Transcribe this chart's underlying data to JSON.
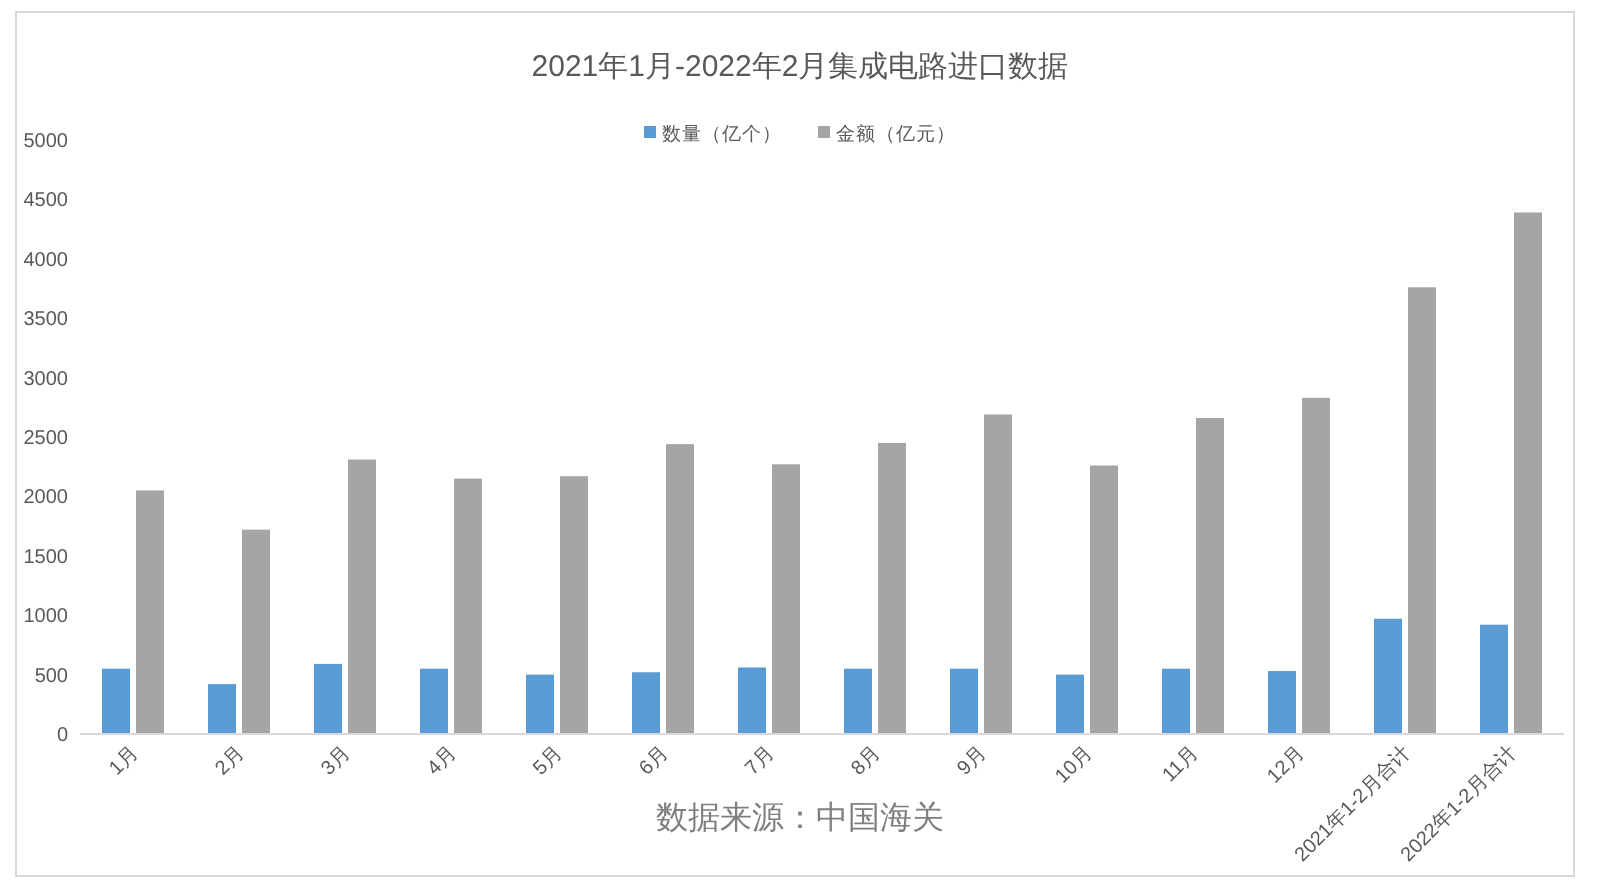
{
  "chart_data": {
    "type": "bar",
    "title": "2021年1月-2022年2月集成电路进口数据",
    "categories": [
      "1月",
      "2月",
      "3月",
      "4月",
      "5月",
      "6月",
      "7月",
      "8月",
      "9月",
      "10月",
      "11月",
      "12月",
      "2021年1-2月合计",
      "2022年1-2月合计"
    ],
    "series": [
      {
        "name": "数量（亿个）",
        "color": "#5b9bd5",
        "values": [
          550,
          420,
          590,
          550,
          500,
          520,
          560,
          550,
          550,
          500,
          550,
          530,
          970,
          920
        ]
      },
      {
        "name": "金额（亿元）",
        "color": "#a5a5a5",
        "values": [
          2050,
          1720,
          2310,
          2150,
          2170,
          2440,
          2270,
          2450,
          2690,
          2260,
          2660,
          2830,
          3760,
          4390
        ]
      }
    ],
    "ylim": [
      0,
      5000
    ],
    "yticks": [
      0,
      500,
      1000,
      1500,
      2000,
      2500,
      3000,
      3500,
      4000,
      4500,
      5000
    ],
    "legend": "top",
    "annotations": [
      "数据来源：中国海关"
    ]
  }
}
